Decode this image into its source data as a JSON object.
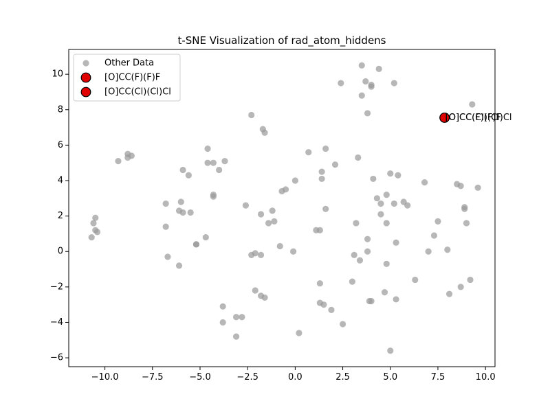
{
  "chart_data": {
    "type": "scatter",
    "title": "t-SNE Visualization of rad_atom_hiddens",
    "xlabel": "",
    "ylabel": "",
    "xlim": [
      -11.9,
      10.5
    ],
    "ylim": [
      -6.5,
      11.4
    ],
    "xticks": [
      -10,
      -7.5,
      -5,
      -2.5,
      0,
      2.5,
      5,
      7.5,
      10
    ],
    "xtick_labels": [
      "−10.0",
      "−7.5",
      "−5.0",
      "−2.5",
      "0.0",
      "2.5",
      "5.0",
      "7.5",
      "10.0"
    ],
    "yticks": [
      -6,
      -4,
      -2,
      0,
      2,
      4,
      6,
      8,
      10
    ],
    "ytick_labels": [
      "−6",
      "−4",
      "−2",
      "0",
      "2",
      "4",
      "6",
      "8",
      "10"
    ],
    "grid": false,
    "legend_position": "top-left",
    "series": [
      {
        "name": "Other Data",
        "color": "#999999",
        "points": [
          [
            3.5,
            10.5
          ],
          [
            4.4,
            10.3
          ],
          [
            2.4,
            9.5
          ],
          [
            3.7,
            9.6
          ],
          [
            5.2,
            9.5
          ],
          [
            4.0,
            9.3
          ],
          [
            4.0,
            9.4
          ],
          [
            3.5,
            8.8
          ],
          [
            3.8,
            7.8
          ],
          [
            9.3,
            8.3
          ],
          [
            -2.3,
            7.7
          ],
          [
            -1.7,
            6.9
          ],
          [
            -1.6,
            6.7
          ],
          [
            -8.8,
            5.5
          ],
          [
            -8.8,
            5.3
          ],
          [
            -9.3,
            5.1
          ],
          [
            -8.6,
            5.4
          ],
          [
            -4.6,
            5.8
          ],
          [
            -4.6,
            5.0
          ],
          [
            -4.3,
            5.0
          ],
          [
            -3.7,
            5.1
          ],
          [
            -4.0,
            4.6
          ],
          [
            -5.9,
            4.6
          ],
          [
            -5.6,
            4.3
          ],
          [
            0.7,
            5.6
          ],
          [
            1.6,
            5.8
          ],
          [
            3.3,
            5.3
          ],
          [
            2.1,
            4.9
          ],
          [
            1.4,
            4.5
          ],
          [
            1.4,
            4.1
          ],
          [
            5.0,
            4.4
          ],
          [
            5.4,
            4.3
          ],
          [
            4.1,
            4.1
          ],
          [
            6.8,
            3.9
          ],
          [
            0.0,
            4.0
          ],
          [
            -0.5,
            3.5
          ],
          [
            -0.7,
            3.4
          ],
          [
            -4.3,
            3.2
          ],
          [
            -4.3,
            3.1
          ],
          [
            -6.0,
            2.8
          ],
          [
            -6.8,
            2.7
          ],
          [
            -6.1,
            2.3
          ],
          [
            -5.9,
            2.2
          ],
          [
            -5.5,
            2.2
          ],
          [
            -2.6,
            2.6
          ],
          [
            -1.8,
            2.1
          ],
          [
            -1.2,
            2.3
          ],
          [
            -1.4,
            1.6
          ],
          [
            -1.1,
            1.7
          ],
          [
            8.5,
            3.8
          ],
          [
            8.7,
            3.7
          ],
          [
            9.6,
            3.6
          ],
          [
            4.8,
            3.2
          ],
          [
            4.3,
            3.0
          ],
          [
            4.5,
            2.7
          ],
          [
            5.2,
            2.7
          ],
          [
            5.7,
            2.8
          ],
          [
            5.9,
            2.6
          ],
          [
            8.9,
            2.5
          ],
          [
            8.9,
            2.4
          ],
          [
            -10.5,
            1.9
          ],
          [
            -10.6,
            1.6
          ],
          [
            -10.5,
            1.2
          ],
          [
            -10.4,
            1.1
          ],
          [
            -10.7,
            0.8
          ],
          [
            -6.8,
            1.4
          ],
          [
            -4.7,
            0.8
          ],
          [
            -5.2,
            0.4
          ],
          [
            -5.2,
            0.4
          ],
          [
            1.6,
            2.4
          ],
          [
            1.1,
            1.2
          ],
          [
            1.3,
            1.2
          ],
          [
            3.2,
            1.6
          ],
          [
            4.5,
            2.1
          ],
          [
            4.8,
            1.6
          ],
          [
            7.5,
            1.7
          ],
          [
            9.0,
            1.6
          ],
          [
            7.3,
            0.9
          ],
          [
            3.8,
            0.7
          ],
          [
            5.3,
            0.5
          ],
          [
            -0.8,
            0.3
          ],
          [
            -0.1,
            0.0
          ],
          [
            3.8,
            0.0
          ],
          [
            7.0,
            0.0
          ],
          [
            8.0,
            0.1
          ],
          [
            -6.7,
            -0.3
          ],
          [
            -2.3,
            -0.2
          ],
          [
            -2.1,
            -0.1
          ],
          [
            -1.8,
            -0.2
          ],
          [
            3.1,
            -0.2
          ],
          [
            3.4,
            -0.5
          ],
          [
            -6.1,
            -0.8
          ],
          [
            4.8,
            -0.7
          ],
          [
            9.2,
            -1.6
          ],
          [
            6.3,
            -1.6
          ],
          [
            3.0,
            -1.7
          ],
          [
            1.3,
            -1.8
          ],
          [
            8.7,
            -2.0
          ],
          [
            -2.1,
            -2.2
          ],
          [
            4.7,
            -2.3
          ],
          [
            8.1,
            -2.4
          ],
          [
            -1.8,
            -2.5
          ],
          [
            -1.6,
            -2.6
          ],
          [
            5.3,
            -2.7
          ],
          [
            3.9,
            -2.8
          ],
          [
            4.0,
            -2.8
          ],
          [
            1.3,
            -2.9
          ],
          [
            1.5,
            -3.0
          ],
          [
            -3.8,
            -3.1
          ],
          [
            1.9,
            -3.3
          ],
          [
            -3.1,
            -3.7
          ],
          [
            -2.8,
            -3.7
          ],
          [
            -3.8,
            -4.0
          ],
          [
            2.5,
            -4.1
          ],
          [
            0.2,
            -4.6
          ],
          [
            -3.1,
            -4.8
          ],
          [
            5.0,
            -5.6
          ]
        ]
      },
      {
        "name": "[O]CC(F)(F)F",
        "color": "#e00000",
        "points": [
          [
            7.85,
            7.55
          ]
        ]
      },
      {
        "name": "[O]CC(Cl)(Cl)Cl",
        "color": "#e00000",
        "points": [
          [
            7.85,
            7.55
          ]
        ]
      }
    ],
    "annotations": [
      {
        "text": "[O]CC(F)(F)F",
        "x": 7.85,
        "y": 7.55
      },
      {
        "text": "[O]CC(Cl)(Cl)Cl",
        "x": 7.85,
        "y": 7.55
      }
    ]
  }
}
